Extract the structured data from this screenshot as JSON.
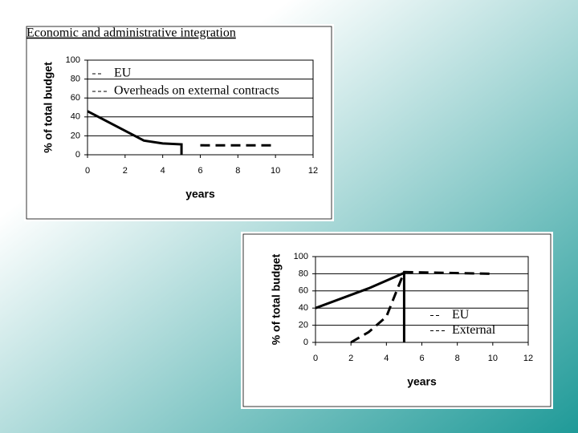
{
  "chart_data": [
    {
      "type": "line",
      "title": "Economic and administrative integration",
      "ylabel": "% of total budget",
      "xlabel": "years",
      "xlim": [
        0,
        12
      ],
      "xticks": [
        0,
        2,
        4,
        6,
        8,
        10,
        12
      ],
      "ylim": [
        0,
        100
      ],
      "yticks": [
        0,
        20,
        40,
        60,
        80,
        100
      ],
      "grid": true,
      "legend": "upper left",
      "series": [
        {
          "name": "EU",
          "color": "#000000",
          "linestyle": "solid",
          "x": [
            0,
            3,
            4,
            5,
            5
          ],
          "values": [
            46,
            15,
            12,
            11,
            0
          ]
        },
        {
          "name": "Overheads on external contracts",
          "color": "#000000",
          "linestyle": "dashed",
          "x": [
            6,
            10
          ],
          "values": [
            10,
            10
          ]
        }
      ]
    },
    {
      "type": "line",
      "ylabel": "% of total budget",
      "xlabel": "years",
      "xlim": [
        0,
        12
      ],
      "xticks": [
        0,
        2,
        4,
        6,
        8,
        10,
        12
      ],
      "ylim": [
        0,
        100
      ],
      "yticks": [
        0,
        20,
        40,
        60,
        80,
        100
      ],
      "grid": true,
      "legend": "center right",
      "series": [
        {
          "name": "EU",
          "color": "#000000",
          "linestyle": "solid",
          "x": [
            0,
            3,
            5,
            5
          ],
          "values": [
            40,
            63,
            81,
            0
          ]
        },
        {
          "name": "External",
          "color": "#000000",
          "linestyle": "dashed",
          "x": [
            2,
            3,
            4,
            5,
            10
          ],
          "values": [
            0,
            12,
            30,
            82,
            80
          ]
        }
      ]
    }
  ]
}
